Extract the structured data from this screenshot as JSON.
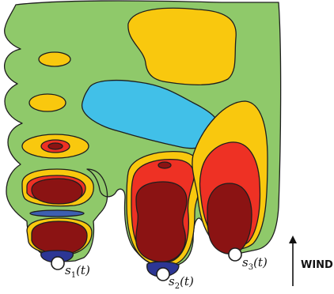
{
  "sources": [
    {
      "name": "s",
      "sub": "1",
      "arg": "(t)"
    },
    {
      "name": "s",
      "sub": "2",
      "arg": "(t)"
    },
    {
      "name": "s",
      "sub": "3",
      "arg": "(t)"
    }
  ],
  "wind": {
    "label": "WIND"
  },
  "colors": {
    "outer": "#8fc96a",
    "level2": "#f9c80e",
    "level3": "#ee3124",
    "level4": "#8b1313",
    "low": "#41c0e8",
    "source_base": "#2c3694"
  }
}
